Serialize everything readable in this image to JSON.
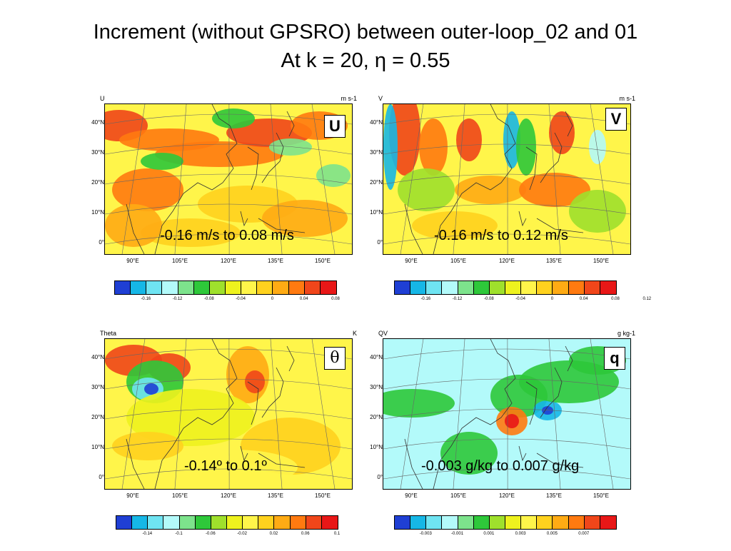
{
  "title": {
    "line1": "Increment (without GPSRO) between outer-loop_02 and 01",
    "line2": "At k = 20, η = 0.55"
  },
  "map_axes": {
    "lat_labels": [
      "40°N",
      "30°N",
      "20°N",
      "10°N",
      "0°"
    ],
    "lon_labels": [
      "90°E",
      "105°E",
      "120°E",
      "135°E",
      "150°E"
    ]
  },
  "colorbar_colors": [
    "#1f3fd4",
    "#16b7e6",
    "#6fe4f2",
    "#b3fafa",
    "#7de38c",
    "#2ec83a",
    "#9fe02c",
    "#eef21e",
    "#fff54a",
    "#ffd21e",
    "#ffab14",
    "#ff7a10",
    "#f0461a",
    "#e81717"
  ],
  "panels": [
    {
      "varname": "U",
      "units": "m s-1",
      "badge": "U",
      "range_text": "-0.16 m/s to 0.08 m/s",
      "colorbar_ticks": [
        "-0.16",
        "-0.12",
        "-0.08",
        "-0.04",
        "0",
        "0.04",
        "0.08"
      ]
    },
    {
      "varname": "V",
      "units": "m s-1",
      "badge": "V",
      "range_text": "-0.16 m/s to 0.12 m/s",
      "colorbar_ticks": [
        "-0.16",
        "-0.12",
        "-0.08",
        "-0.04",
        "0",
        "0.04",
        "0.08",
        "0.12"
      ]
    },
    {
      "varname": "Theta",
      "units": "K",
      "badge": "θ",
      "range_text": "-0.14º to 0.1º",
      "colorbar_ticks": [
        "-0.14",
        "-0.1",
        "-0.06",
        "-0.02",
        "0.02",
        "0.06",
        "0.1"
      ]
    },
    {
      "varname": "QV",
      "units": "g kg-1",
      "badge": "q",
      "range_text": "-0.003 g/kg to 0.007 g/kg",
      "colorbar_ticks": [
        "-0.003",
        "-0.001",
        "0.001",
        "0.003",
        "0.005",
        "0.007"
      ]
    }
  ]
}
